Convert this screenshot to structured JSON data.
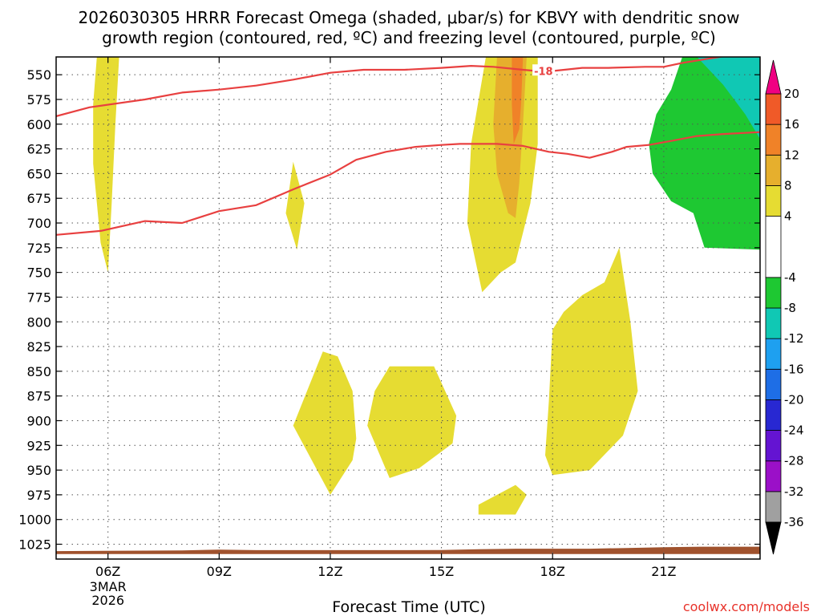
{
  "title_line1": "2026030305 HRRR Forecast Omega (shaded, μbar/s) for KBVY with dendritic snow",
  "title_line2": "growth region (contoured, red, ºC) and freezing level (contoured, purple, ºC)",
  "xlabel": "Forecast Time (UTC)",
  "credit": "coolwx.com/models",
  "chart_data": {
    "type": "heatmap",
    "x_axis": {
      "unit": "hour",
      "range": [
        4.6,
        23.6
      ],
      "ticks": [
        {
          "hour": 6,
          "label": "06Z",
          "sub1": "3MAR",
          "sub2": "2026"
        },
        {
          "hour": 9,
          "label": "09Z"
        },
        {
          "hour": 12,
          "label": "12Z"
        },
        {
          "hour": 15,
          "label": "15Z"
        },
        {
          "hour": 18,
          "label": "18Z"
        },
        {
          "hour": 21,
          "label": "21Z"
        }
      ],
      "grid": true
    },
    "y_axis": {
      "unit": "hPa",
      "inverted": true,
      "range": [
        532,
        1040
      ],
      "ticks": [
        550,
        575,
        600,
        625,
        650,
        675,
        700,
        725,
        750,
        775,
        800,
        825,
        850,
        875,
        900,
        925,
        950,
        975,
        1000,
        1025
      ],
      "grid": true
    },
    "colorbar": {
      "levels": [
        "-36",
        "-32",
        "-28",
        "-24",
        "-20",
        "-16",
        "-12",
        "-8",
        "-4",
        "4",
        "8",
        "12",
        "16",
        "20"
      ],
      "colors": [
        {
          "from": -36,
          "to": -32,
          "color": "#a0a0a0"
        },
        {
          "from": -32,
          "to": -28,
          "color": "#9b10c8"
        },
        {
          "from": -28,
          "to": -24,
          "color": "#6414d2"
        },
        {
          "from": -24,
          "to": -20,
          "color": "#2828d2"
        },
        {
          "from": -20,
          "to": -16,
          "color": "#1e6ee6"
        },
        {
          "from": -16,
          "to": -12,
          "color": "#1ea0f0"
        },
        {
          "from": -12,
          "to": -8,
          "color": "#10c8b4"
        },
        {
          "from": -8,
          "to": -4,
          "color": "#1ec832"
        },
        {
          "from": -4,
          "to": 4,
          "color": "#ffffff"
        },
        {
          "from": 4,
          "to": 8,
          "color": "#e6dc32"
        },
        {
          "from": 8,
          "to": 12,
          "color": "#e6af2d"
        },
        {
          "from": 12,
          "to": 16,
          "color": "#f08228"
        },
        {
          "from": 16,
          "to": 20,
          "color": "#f05a28"
        }
      ],
      "arrow_low": "#000000",
      "arrow_high": "#f00082"
    },
    "shaded_regions": [
      {
        "level": "4-8",
        "color": "#e6dc32",
        "points": [
          [
            5.7,
            532
          ],
          [
            6.3,
            532
          ],
          [
            6.2,
            600
          ],
          [
            6.1,
            680
          ],
          [
            6.0,
            750
          ],
          [
            5.8,
            720
          ],
          [
            5.6,
            640
          ],
          [
            5.6,
            580
          ]
        ]
      },
      {
        "level": "4-8",
        "color": "#e6dc32",
        "points": [
          [
            11.0,
            638
          ],
          [
            11.3,
            680
          ],
          [
            11.1,
            727
          ],
          [
            10.8,
            690
          ]
        ]
      },
      {
        "level": "4-8",
        "color": "#e6dc32",
        "points": [
          [
            16.2,
            532
          ],
          [
            17.6,
            532
          ],
          [
            17.6,
            620
          ],
          [
            17.4,
            680
          ],
          [
            17.0,
            740
          ],
          [
            16.6,
            750
          ],
          [
            16.1,
            770
          ],
          [
            15.7,
            700
          ],
          [
            15.8,
            620
          ]
        ]
      },
      {
        "level": "8-12",
        "color": "#e6af2d",
        "points": [
          [
            16.5,
            532
          ],
          [
            17.3,
            532
          ],
          [
            17.2,
            600
          ],
          [
            17.1,
            660
          ],
          [
            17.0,
            695
          ],
          [
            16.8,
            690
          ],
          [
            16.5,
            650
          ],
          [
            16.4,
            600
          ]
        ]
      },
      {
        "level": "12-16",
        "color": "#f08228",
        "points": [
          [
            16.9,
            532
          ],
          [
            17.2,
            532
          ],
          [
            17.15,
            580
          ],
          [
            17.1,
            605
          ],
          [
            16.95,
            620
          ],
          [
            16.9,
            580
          ]
        ]
      },
      {
        "level": "4-8",
        "color": "#e6dc32",
        "points": [
          [
            11.8,
            830
          ],
          [
            12.2,
            835
          ],
          [
            12.6,
            870
          ],
          [
            12.7,
            918
          ],
          [
            12.6,
            940
          ],
          [
            12.0,
            975
          ],
          [
            11.0,
            905
          ]
        ]
      },
      {
        "level": "4-8",
        "color": "#e6dc32",
        "points": [
          [
            13.6,
            845
          ],
          [
            14.8,
            845
          ],
          [
            15.4,
            895
          ],
          [
            15.3,
            923
          ],
          [
            14.4,
            948
          ],
          [
            13.6,
            958
          ],
          [
            13.0,
            905
          ],
          [
            13.2,
            870
          ]
        ]
      },
      {
        "level": "4-8",
        "color": "#e6dc32",
        "points": [
          [
            16.0,
            985
          ],
          [
            17.0,
            965
          ],
          [
            17.3,
            975
          ],
          [
            17.0,
            995
          ],
          [
            16.0,
            995
          ]
        ]
      },
      {
        "level": "4-8",
        "color": "#e6dc32",
        "points": [
          [
            18.0,
            808
          ],
          [
            18.3,
            790
          ],
          [
            18.8,
            773
          ],
          [
            19.4,
            760
          ],
          [
            19.8,
            725
          ],
          [
            20.1,
            800
          ],
          [
            20.3,
            870
          ],
          [
            19.9,
            915
          ],
          [
            19.0,
            950
          ],
          [
            18.0,
            955
          ],
          [
            17.8,
            935
          ],
          [
            17.9,
            880
          ]
        ]
      },
      {
        "level": "-8--4",
        "color": "#1ec832",
        "points": [
          [
            21.5,
            532
          ],
          [
            23.6,
            532
          ],
          [
            23.6,
            727
          ],
          [
            22.1,
            725
          ],
          [
            21.8,
            690
          ],
          [
            21.2,
            678
          ],
          [
            20.7,
            650
          ],
          [
            20.6,
            620
          ],
          [
            20.8,
            590
          ],
          [
            21.2,
            565
          ]
        ]
      },
      {
        "level": "-12--8",
        "color": "#10c8b4",
        "points": [
          [
            21.9,
            532
          ],
          [
            23.6,
            532
          ],
          [
            23.6,
            615
          ],
          [
            23.2,
            590
          ],
          [
            22.6,
            560
          ]
        ]
      }
    ],
    "contours": [
      {
        "label": "",
        "color": "#e84040",
        "points": [
          [
            4.6,
            592
          ],
          [
            5.5,
            583
          ],
          [
            7.0,
            575
          ],
          [
            8.0,
            568
          ],
          [
            9.0,
            565
          ],
          [
            10.0,
            561
          ],
          [
            11.0,
            555
          ],
          [
            12.0,
            548
          ],
          [
            12.9,
            545
          ],
          [
            14.0,
            545
          ],
          [
            15.0,
            543
          ],
          [
            15.8,
            541
          ],
          [
            16.4,
            542
          ],
          [
            17.2,
            545
          ],
          [
            17.8,
            547
          ],
          [
            18.8,
            543
          ],
          [
            19.5,
            543
          ],
          [
            20.5,
            542
          ],
          [
            21.0,
            542
          ],
          [
            21.5,
            538
          ],
          [
            22.5,
            532
          ],
          [
            23.6,
            525
          ]
        ]
      },
      {
        "label": "",
        "color": "#e84040",
        "points": [
          [
            4.6,
            712
          ],
          [
            5.8,
            708
          ],
          [
            7.0,
            698
          ],
          [
            8.0,
            700
          ],
          [
            9.0,
            688
          ],
          [
            10.0,
            682
          ],
          [
            11.0,
            666
          ],
          [
            12.0,
            651
          ],
          [
            12.7,
            636
          ],
          [
            13.5,
            628
          ],
          [
            14.3,
            623
          ],
          [
            15.0,
            621
          ],
          [
            15.5,
            620
          ],
          [
            16.5,
            620
          ],
          [
            17.2,
            622
          ],
          [
            17.9,
            628
          ],
          [
            18.4,
            630
          ],
          [
            19.0,
            634
          ],
          [
            19.6,
            628
          ],
          [
            20.0,
            623
          ],
          [
            20.6,
            621
          ],
          [
            21.2,
            617
          ],
          [
            21.9,
            612
          ],
          [
            22.6,
            610
          ],
          [
            23.6,
            608
          ]
        ]
      }
    ],
    "contour_labels": [
      {
        "text": "-18",
        "x": 17.5,
        "y": 546
      }
    ],
    "terrain": {
      "color": "#a0522d",
      "top_points": [
        [
          4.6,
          1032
        ],
        [
          7.0,
          1031.5
        ],
        [
          8.0,
          1031.2
        ],
        [
          9.0,
          1030.5
        ],
        [
          10.0,
          1031
        ],
        [
          12.0,
          1031
        ],
        [
          14.0,
          1031
        ],
        [
          15.0,
          1030.8
        ],
        [
          16.0,
          1030
        ],
        [
          17.0,
          1029.5
        ],
        [
          18.0,
          1029.5
        ],
        [
          19.0,
          1029.5
        ],
        [
          20.0,
          1028.8
        ],
        [
          21.0,
          1028
        ],
        [
          22.0,
          1027.5
        ],
        [
          23.6,
          1027.5
        ]
      ],
      "bottom": 1035
    }
  }
}
